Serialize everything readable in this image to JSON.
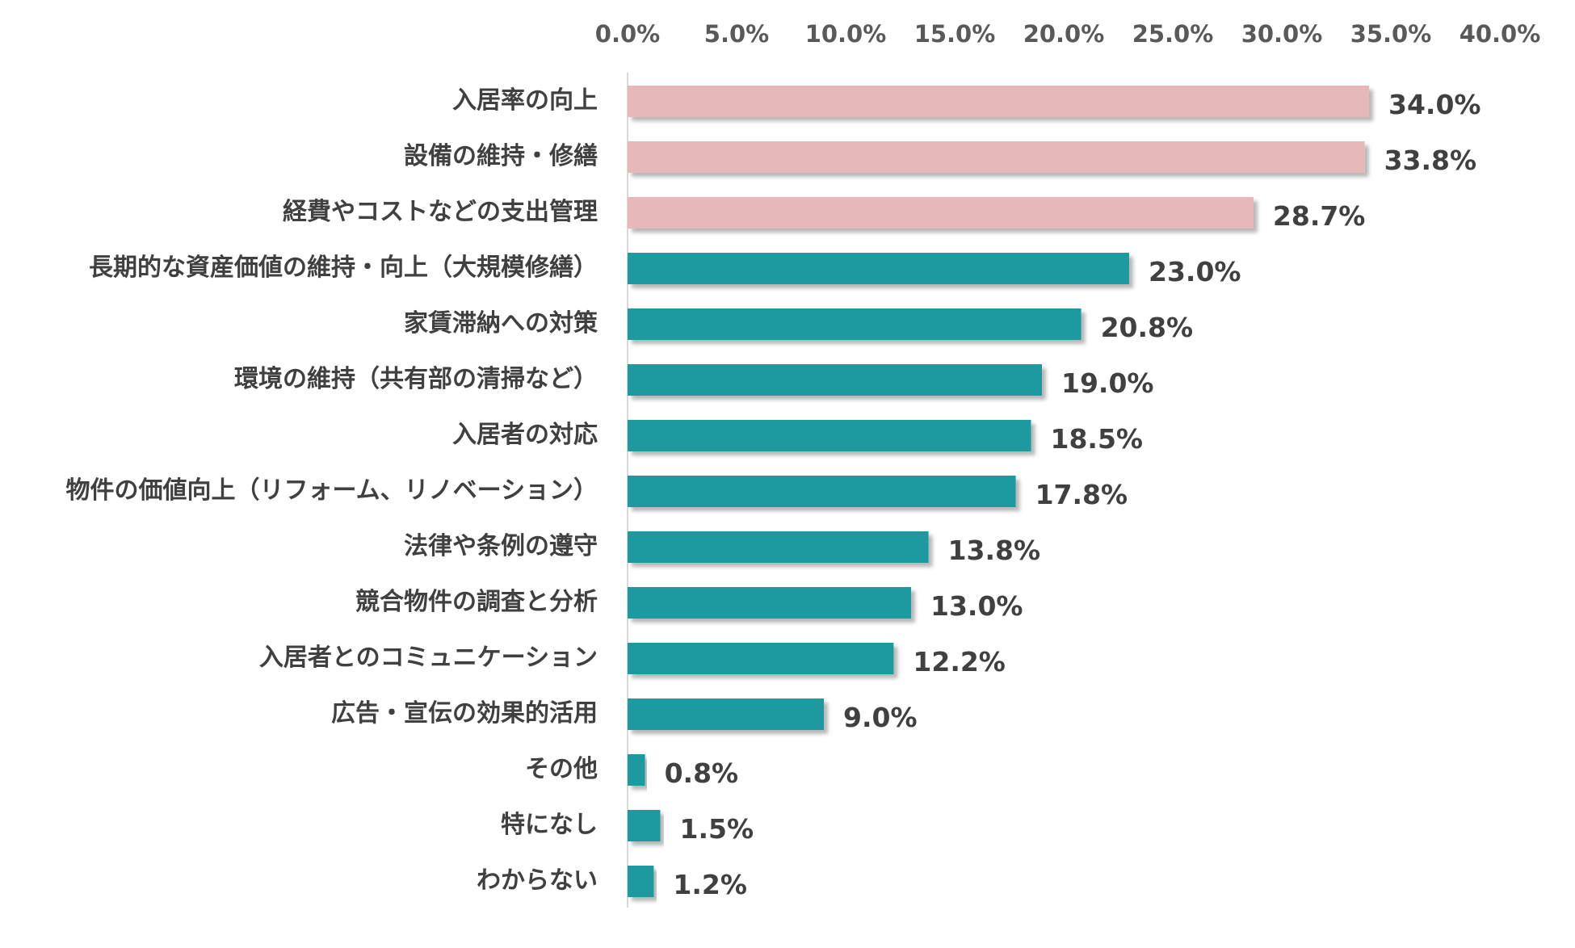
{
  "chart_data": {
    "type": "bar",
    "orientation": "horizontal",
    "title": "",
    "xlabel": "",
    "ylabel": "",
    "xlim": [
      0,
      40
    ],
    "grid": false,
    "legend": "none",
    "tick_labels": [
      "0.0%",
      "5.0%",
      "10.0%",
      "15.0%",
      "20.0%",
      "25.0%",
      "30.0%",
      "35.0%",
      "40.0%"
    ],
    "ticks": [
      0,
      5,
      10,
      15,
      20,
      25,
      30,
      35,
      40
    ],
    "categories": [
      "入居率の向上",
      "設備の維持・修繕",
      "経費やコストなどの支出管理",
      "長期的な資産価値の維持・向上（大規模修繕）",
      "家賃滞納への対策",
      "環境の維持（共有部の清掃など）",
      "入居者の対応",
      "物件の価値向上（リフォーム、リノベーション）",
      "法律や条例の遵守",
      "競合物件の調査と分析",
      "入居者とのコミュニケーション",
      "広告・宣伝の効果的活用",
      "その他",
      "特になし",
      "わからない"
    ],
    "values": [
      34.0,
      33.8,
      28.7,
      23.0,
      20.8,
      19.0,
      18.5,
      17.8,
      13.8,
      13.0,
      12.2,
      9.0,
      0.8,
      1.5,
      1.2
    ],
    "value_labels": [
      "34.0%",
      "33.8%",
      "28.7%",
      "23.0%",
      "20.8%",
      "19.0%",
      "18.5%",
      "17.8%",
      "13.8%",
      "13.0%",
      "12.2%",
      "9.0%",
      "0.8%",
      "1.5%",
      "1.2%"
    ],
    "highlight_count": 3,
    "colors": {
      "highlight": "#e6b9b8",
      "default": "#1b9aa0",
      "shadow": "#bfbfbf",
      "axis": "#d9d9d9"
    }
  }
}
